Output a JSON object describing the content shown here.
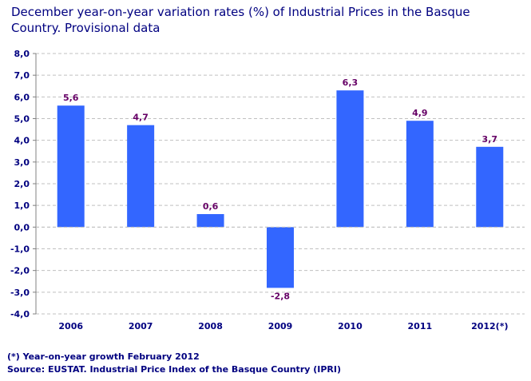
{
  "chart_data": {
    "type": "bar",
    "title": "December year-on-year variation rates (%) of Industrial Prices in the Basque Country. Provisional data",
    "categories": [
      "2006",
      "2007",
      "2008",
      "2009",
      "2010",
      "2011",
      "2012(*)"
    ],
    "values": [
      5.6,
      4.7,
      0.6,
      -2.8,
      6.3,
      4.9,
      3.7
    ],
    "data_labels": [
      "5,6",
      "4,7",
      "0,6",
      "-2,8",
      "6,3",
      "4,9",
      "3,7"
    ],
    "ylim": [
      -4,
      8
    ],
    "yticks": [
      "8,0",
      "7,0",
      "6,0",
      "5,0",
      "4,0",
      "3,0",
      "2,0",
      "1,0",
      "0,0",
      "-1,0",
      "-2,0",
      "-3,0",
      "-4,0"
    ],
    "xlabel": "",
    "ylabel": "",
    "grid": true,
    "colors": {
      "bar": "#3366ff",
      "label": "#660066",
      "axis_text": "#000080"
    }
  },
  "footnotes": {
    "note": "(*) Year-on-year growth February 2012",
    "source": "Source: EUSTAT. Industrial Price Index of the Basque Country (IPRI)"
  }
}
